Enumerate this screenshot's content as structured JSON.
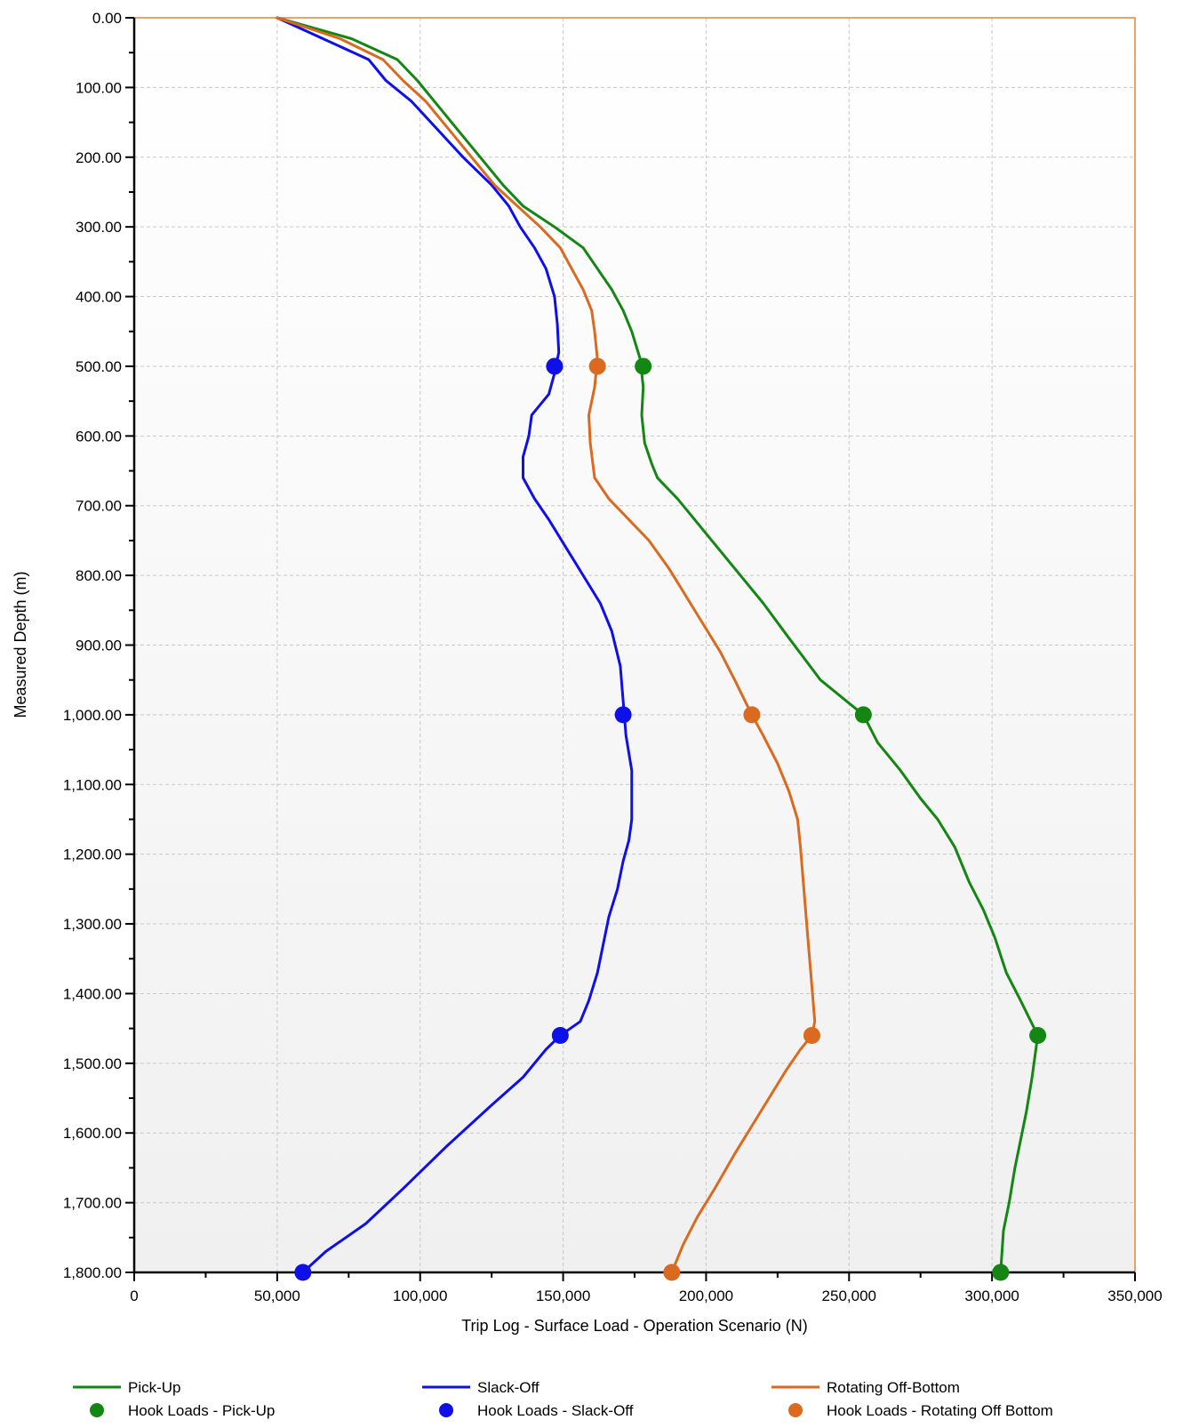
{
  "chart_data": {
    "type": "line",
    "orientation": "depth-vertical",
    "xlabel": "Trip Log - Surface Load - Operation Scenario (N)",
    "ylabel": "Measured Depth (m)",
    "xlim": [
      0,
      350000
    ],
    "ylim": [
      0,
      1800
    ],
    "y_reversed": true,
    "grid": true,
    "legend_position": "bottom",
    "x_ticks": [
      "0",
      "50,000",
      "100,000",
      "150,000",
      "200,000",
      "250,000",
      "300,000",
      "350,000"
    ],
    "x_tick_values": [
      0,
      50000,
      100000,
      150000,
      200000,
      250000,
      300000,
      350000
    ],
    "y_ticks": [
      "0.00",
      "100.00",
      "200.00",
      "300.00",
      "400.00",
      "500.00",
      "600.00",
      "700.00",
      "800.00",
      "900.00",
      "1,000.00",
      "1,100.00",
      "1,200.00",
      "1,300.00",
      "1,400.00",
      "1,500.00",
      "1,600.00",
      "1,700.00",
      "1,800.00"
    ],
    "y_tick_values": [
      0,
      100,
      200,
      300,
      400,
      500,
      600,
      700,
      800,
      900,
      1000,
      1100,
      1200,
      1300,
      1400,
      1500,
      1600,
      1700,
      1800
    ],
    "series": [
      {
        "name": "Pick-Up",
        "color": "#138613",
        "kind": "line",
        "points": [
          [
            50000,
            0
          ],
          [
            76000,
            30
          ],
          [
            92000,
            60
          ],
          [
            99000,
            90
          ],
          [
            105000,
            120
          ],
          [
            113000,
            160
          ],
          [
            121000,
            200
          ],
          [
            129000,
            240
          ],
          [
            136000,
            270
          ],
          [
            147000,
            300
          ],
          [
            157000,
            330
          ],
          [
            162000,
            360
          ],
          [
            167000,
            390
          ],
          [
            171000,
            420
          ],
          [
            174000,
            450
          ],
          [
            177000,
            490
          ],
          [
            178000,
            530
          ],
          [
            177500,
            570
          ],
          [
            178500,
            610
          ],
          [
            181000,
            640
          ],
          [
            183000,
            660
          ],
          [
            190000,
            690
          ],
          [
            200000,
            740
          ],
          [
            212000,
            800
          ],
          [
            220000,
            840
          ],
          [
            229000,
            890
          ],
          [
            240000,
            950
          ],
          [
            255000,
            1000
          ],
          [
            260000,
            1040
          ],
          [
            268000,
            1080
          ],
          [
            275000,
            1120
          ],
          [
            281000,
            1150
          ],
          [
            287000,
            1190
          ],
          [
            292000,
            1240
          ],
          [
            297000,
            1280
          ],
          [
            301000,
            1320
          ],
          [
            305000,
            1370
          ],
          [
            310000,
            1410
          ],
          [
            316000,
            1460
          ],
          [
            314000,
            1520
          ],
          [
            312000,
            1570
          ],
          [
            310000,
            1610
          ],
          [
            308000,
            1650
          ],
          [
            306000,
            1700
          ],
          [
            304000,
            1740
          ],
          [
            303000,
            1800
          ]
        ]
      },
      {
        "name": "Slack-Off",
        "color": "#0f0fe8",
        "kind": "line",
        "points": [
          [
            50000,
            0
          ],
          [
            66000,
            30
          ],
          [
            82000,
            60
          ],
          [
            88000,
            90
          ],
          [
            97000,
            120
          ],
          [
            106000,
            160
          ],
          [
            115000,
            200
          ],
          [
            125000,
            240
          ],
          [
            131000,
            270
          ],
          [
            135000,
            300
          ],
          [
            140000,
            330
          ],
          [
            144000,
            360
          ],
          [
            147000,
            400
          ],
          [
            148000,
            440
          ],
          [
            148500,
            480
          ],
          [
            147000,
            510
          ],
          [
            145000,
            540
          ],
          [
            139000,
            570
          ],
          [
            138000,
            600
          ],
          [
            136000,
            630
          ],
          [
            136000,
            660
          ],
          [
            140000,
            690
          ],
          [
            145000,
            720
          ],
          [
            151000,
            760
          ],
          [
            157000,
            800
          ],
          [
            163000,
            840
          ],
          [
            167000,
            880
          ],
          [
            170000,
            930
          ],
          [
            171000,
            980
          ],
          [
            172000,
            1030
          ],
          [
            174000,
            1080
          ],
          [
            174000,
            1120
          ],
          [
            174000,
            1150
          ],
          [
            173000,
            1180
          ],
          [
            171000,
            1210
          ],
          [
            169000,
            1250
          ],
          [
            166000,
            1290
          ],
          [
            164000,
            1330
          ],
          [
            162000,
            1370
          ],
          [
            159000,
            1410
          ],
          [
            156000,
            1440
          ],
          [
            149000,
            1460
          ],
          [
            144000,
            1480
          ],
          [
            136000,
            1520
          ],
          [
            125000,
            1560
          ],
          [
            109000,
            1620
          ],
          [
            94000,
            1680
          ],
          [
            81000,
            1730
          ],
          [
            67000,
            1770
          ],
          [
            59000,
            1800
          ]
        ]
      },
      {
        "name": "Rotating Off-Bottom",
        "color": "#d96a1f",
        "kind": "line",
        "points": [
          [
            50000,
            0
          ],
          [
            72000,
            30
          ],
          [
            87000,
            60
          ],
          [
            94000,
            90
          ],
          [
            102000,
            120
          ],
          [
            110000,
            160
          ],
          [
            118000,
            200
          ],
          [
            126000,
            240
          ],
          [
            134000,
            270
          ],
          [
            142000,
            300
          ],
          [
            149000,
            330
          ],
          [
            153000,
            360
          ],
          [
            157000,
            390
          ],
          [
            160000,
            420
          ],
          [
            161000,
            450
          ],
          [
            162000,
            490
          ],
          [
            161000,
            530
          ],
          [
            159000,
            570
          ],
          [
            159500,
            610
          ],
          [
            161000,
            660
          ],
          [
            166000,
            690
          ],
          [
            173000,
            720
          ],
          [
            180000,
            750
          ],
          [
            187000,
            790
          ],
          [
            193000,
            830
          ],
          [
            199000,
            870
          ],
          [
            205000,
            910
          ],
          [
            210000,
            950
          ],
          [
            216000,
            1000
          ],
          [
            220000,
            1030
          ],
          [
            225000,
            1070
          ],
          [
            229000,
            1110
          ],
          [
            232000,
            1150
          ],
          [
            233000,
            1190
          ],
          [
            234000,
            1240
          ],
          [
            235000,
            1290
          ],
          [
            236000,
            1340
          ],
          [
            237000,
            1390
          ],
          [
            238000,
            1440
          ],
          [
            237000,
            1460
          ],
          [
            233000,
            1480
          ],
          [
            228000,
            1510
          ],
          [
            222000,
            1550
          ],
          [
            216000,
            1590
          ],
          [
            210000,
            1630
          ],
          [
            203000,
            1680
          ],
          [
            197000,
            1720
          ],
          [
            192000,
            1760
          ],
          [
            188000,
            1800
          ]
        ]
      },
      {
        "name": "Hook Loads - Pick-Up",
        "color": "#138613",
        "kind": "marker",
        "points": [
          [
            178000,
            500
          ],
          [
            255000,
            1000
          ],
          [
            316000,
            1460
          ],
          [
            303000,
            1800
          ]
        ]
      },
      {
        "name": "Hook Loads - Slack-Off",
        "color": "#0f0fe8",
        "kind": "marker",
        "points": [
          [
            147000,
            500
          ],
          [
            171000,
            1000
          ],
          [
            149000,
            1460
          ],
          [
            59000,
            1800
          ]
        ]
      },
      {
        "name": "Hook Loads - Rotating Off Bottom",
        "color": "#d96a1f",
        "kind": "marker",
        "points": [
          [
            162000,
            500
          ],
          [
            216000,
            1000
          ],
          [
            237000,
            1460
          ],
          [
            188000,
            1800
          ]
        ]
      }
    ]
  },
  "colors": {
    "plot_border": "#d9883a",
    "grid": "#c8c8c8",
    "axis": "#000000"
  }
}
